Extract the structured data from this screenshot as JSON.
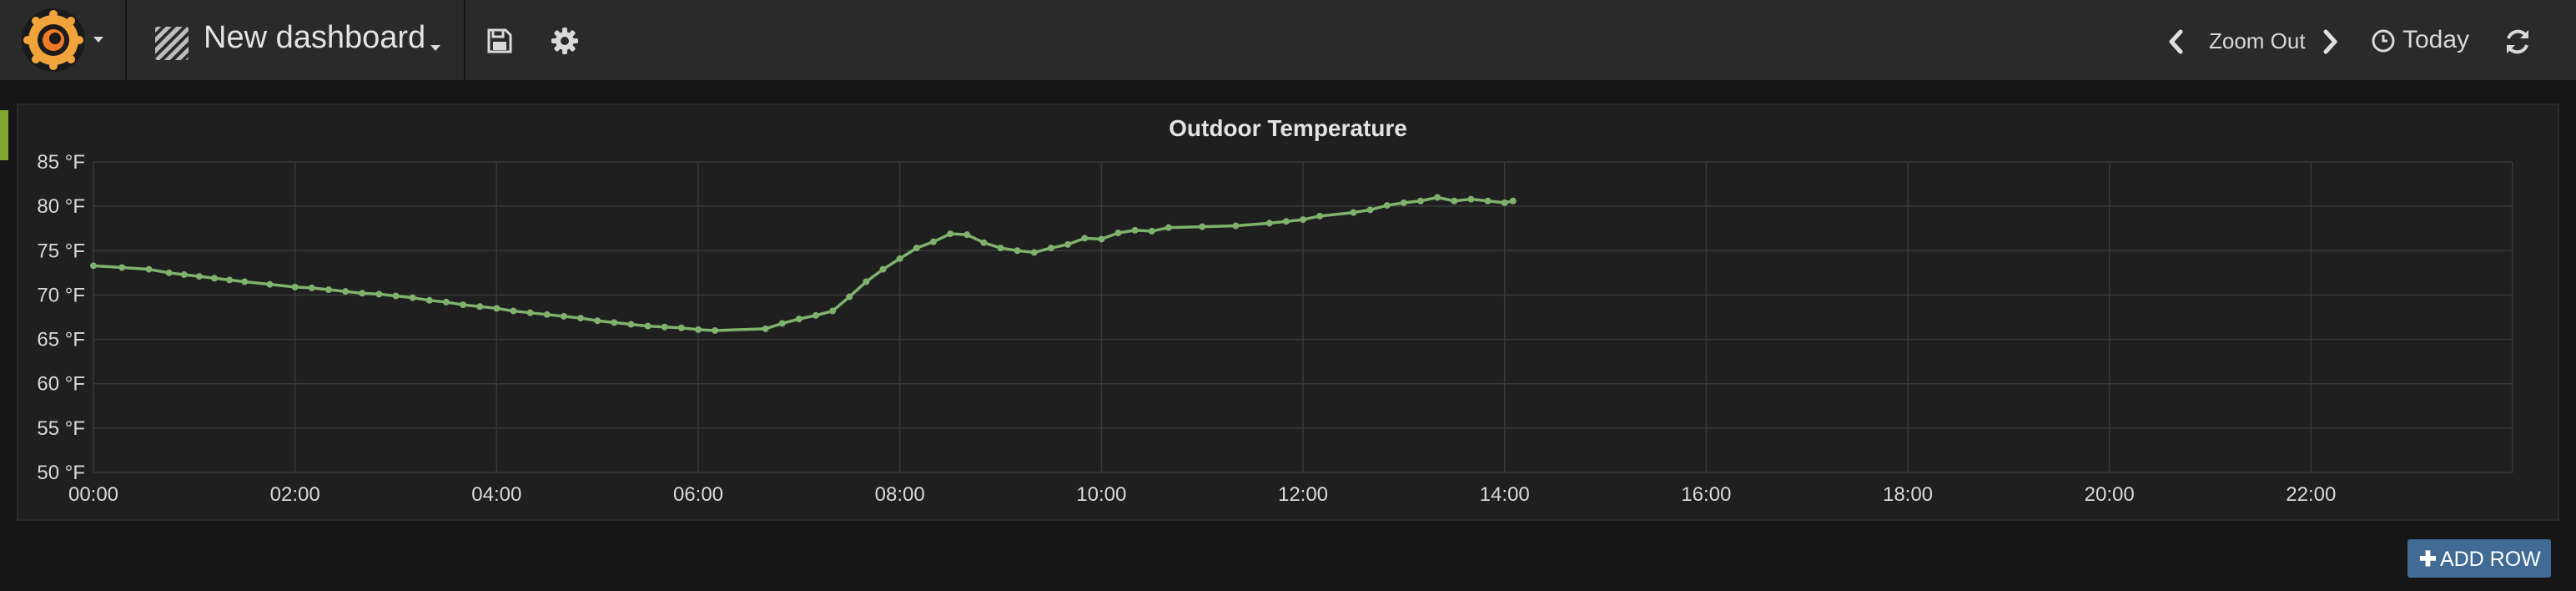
{
  "navbar": {
    "dashboard_title": "New dashboard",
    "zoom_out_label": "Zoom Out",
    "time_range_label": "Today",
    "icons": {
      "logo": "grafana-logo",
      "dashboard": "dashboard-icon",
      "save": "save-icon",
      "settings": "gear-icon",
      "zoom_prev": "chevron-left-icon",
      "zoom_next": "chevron-right-icon",
      "time": "clock-icon",
      "refresh": "refresh-icon"
    }
  },
  "row": {
    "add_row_label": "ADD ROW",
    "handle_color": "#7fa72e"
  },
  "panel": {
    "title": "Outdoor Temperature"
  },
  "colors": {
    "series": "#7eb26d",
    "background": "#161616",
    "panel": "#1f1f1f",
    "button": "#3f6b94"
  },
  "chart_data": {
    "type": "line",
    "title": "Outdoor Temperature",
    "xlabel": "",
    "ylabel": "",
    "x_ticks": [
      "00:00",
      "02:00",
      "04:00",
      "06:00",
      "08:00",
      "10:00",
      "12:00",
      "14:00",
      "16:00",
      "18:00",
      "20:00",
      "22:00"
    ],
    "y_ticks": [
      "50 °F",
      "55 °F",
      "60 °F",
      "65 °F",
      "70 °F",
      "75 °F",
      "80 °F",
      "85 °F"
    ],
    "xlim": [
      "00:00",
      "24:00"
    ],
    "ylim": [
      50,
      85
    ],
    "grid": true,
    "legend": "none",
    "series": [
      {
        "points": [
          [
            "00:00",
            73.3
          ],
          [
            "00:17",
            73.1
          ],
          [
            "00:33",
            72.9
          ],
          [
            "00:45",
            72.5
          ],
          [
            "00:54",
            72.3
          ],
          [
            "01:03",
            72.1
          ],
          [
            "01:12",
            71.9
          ],
          [
            "01:21",
            71.7
          ],
          [
            "01:30",
            71.5
          ],
          [
            "01:45",
            71.2
          ],
          [
            "02:00",
            70.9
          ],
          [
            "02:10",
            70.8
          ],
          [
            "02:20",
            70.6
          ],
          [
            "02:30",
            70.4
          ],
          [
            "02:40",
            70.2
          ],
          [
            "02:50",
            70.1
          ],
          [
            "03:00",
            69.9
          ],
          [
            "03:10",
            69.7
          ],
          [
            "03:20",
            69.4
          ],
          [
            "03:30",
            69.2
          ],
          [
            "03:40",
            68.9
          ],
          [
            "03:50",
            68.7
          ],
          [
            "04:00",
            68.5
          ],
          [
            "04:10",
            68.2
          ],
          [
            "04:20",
            68.0
          ],
          [
            "04:30",
            67.8
          ],
          [
            "04:40",
            67.6
          ],
          [
            "04:50",
            67.4
          ],
          [
            "05:00",
            67.1
          ],
          [
            "05:10",
            66.9
          ],
          [
            "05:20",
            66.7
          ],
          [
            "05:30",
            66.5
          ],
          [
            "05:40",
            66.4
          ],
          [
            "05:50",
            66.3
          ],
          [
            "06:00",
            66.1
          ],
          [
            "06:10",
            66.0
          ],
          [
            "06:40",
            66.2
          ],
          [
            "06:50",
            66.8
          ],
          [
            "07:00",
            67.3
          ],
          [
            "07:10",
            67.7
          ],
          [
            "07:20",
            68.2
          ],
          [
            "07:30",
            69.8
          ],
          [
            "07:40",
            71.5
          ],
          [
            "07:50",
            72.9
          ],
          [
            "08:00",
            74.1
          ],
          [
            "08:10",
            75.3
          ],
          [
            "08:20",
            76.0
          ],
          [
            "08:30",
            76.9
          ],
          [
            "08:40",
            76.8
          ],
          [
            "08:50",
            75.9
          ],
          [
            "09:00",
            75.3
          ],
          [
            "09:10",
            75.0
          ],
          [
            "09:20",
            74.8
          ],
          [
            "09:30",
            75.3
          ],
          [
            "09:40",
            75.7
          ],
          [
            "09:50",
            76.4
          ],
          [
            "10:00",
            76.3
          ],
          [
            "10:10",
            77.0
          ],
          [
            "10:20",
            77.3
          ],
          [
            "10:30",
            77.2
          ],
          [
            "10:40",
            77.6
          ],
          [
            "11:00",
            77.7
          ],
          [
            "11:20",
            77.8
          ],
          [
            "11:40",
            78.1
          ],
          [
            "11:50",
            78.3
          ],
          [
            "12:00",
            78.5
          ],
          [
            "12:10",
            78.9
          ],
          [
            "12:30",
            79.3
          ],
          [
            "12:40",
            79.6
          ],
          [
            "12:50",
            80.1
          ],
          [
            "13:00",
            80.4
          ],
          [
            "13:10",
            80.6
          ],
          [
            "13:20",
            81.0
          ],
          [
            "13:30",
            80.6
          ],
          [
            "13:40",
            80.8
          ],
          [
            "13:50",
            80.6
          ],
          [
            "14:00",
            80.4
          ],
          [
            "14:05",
            80.6
          ]
        ]
      }
    ]
  }
}
